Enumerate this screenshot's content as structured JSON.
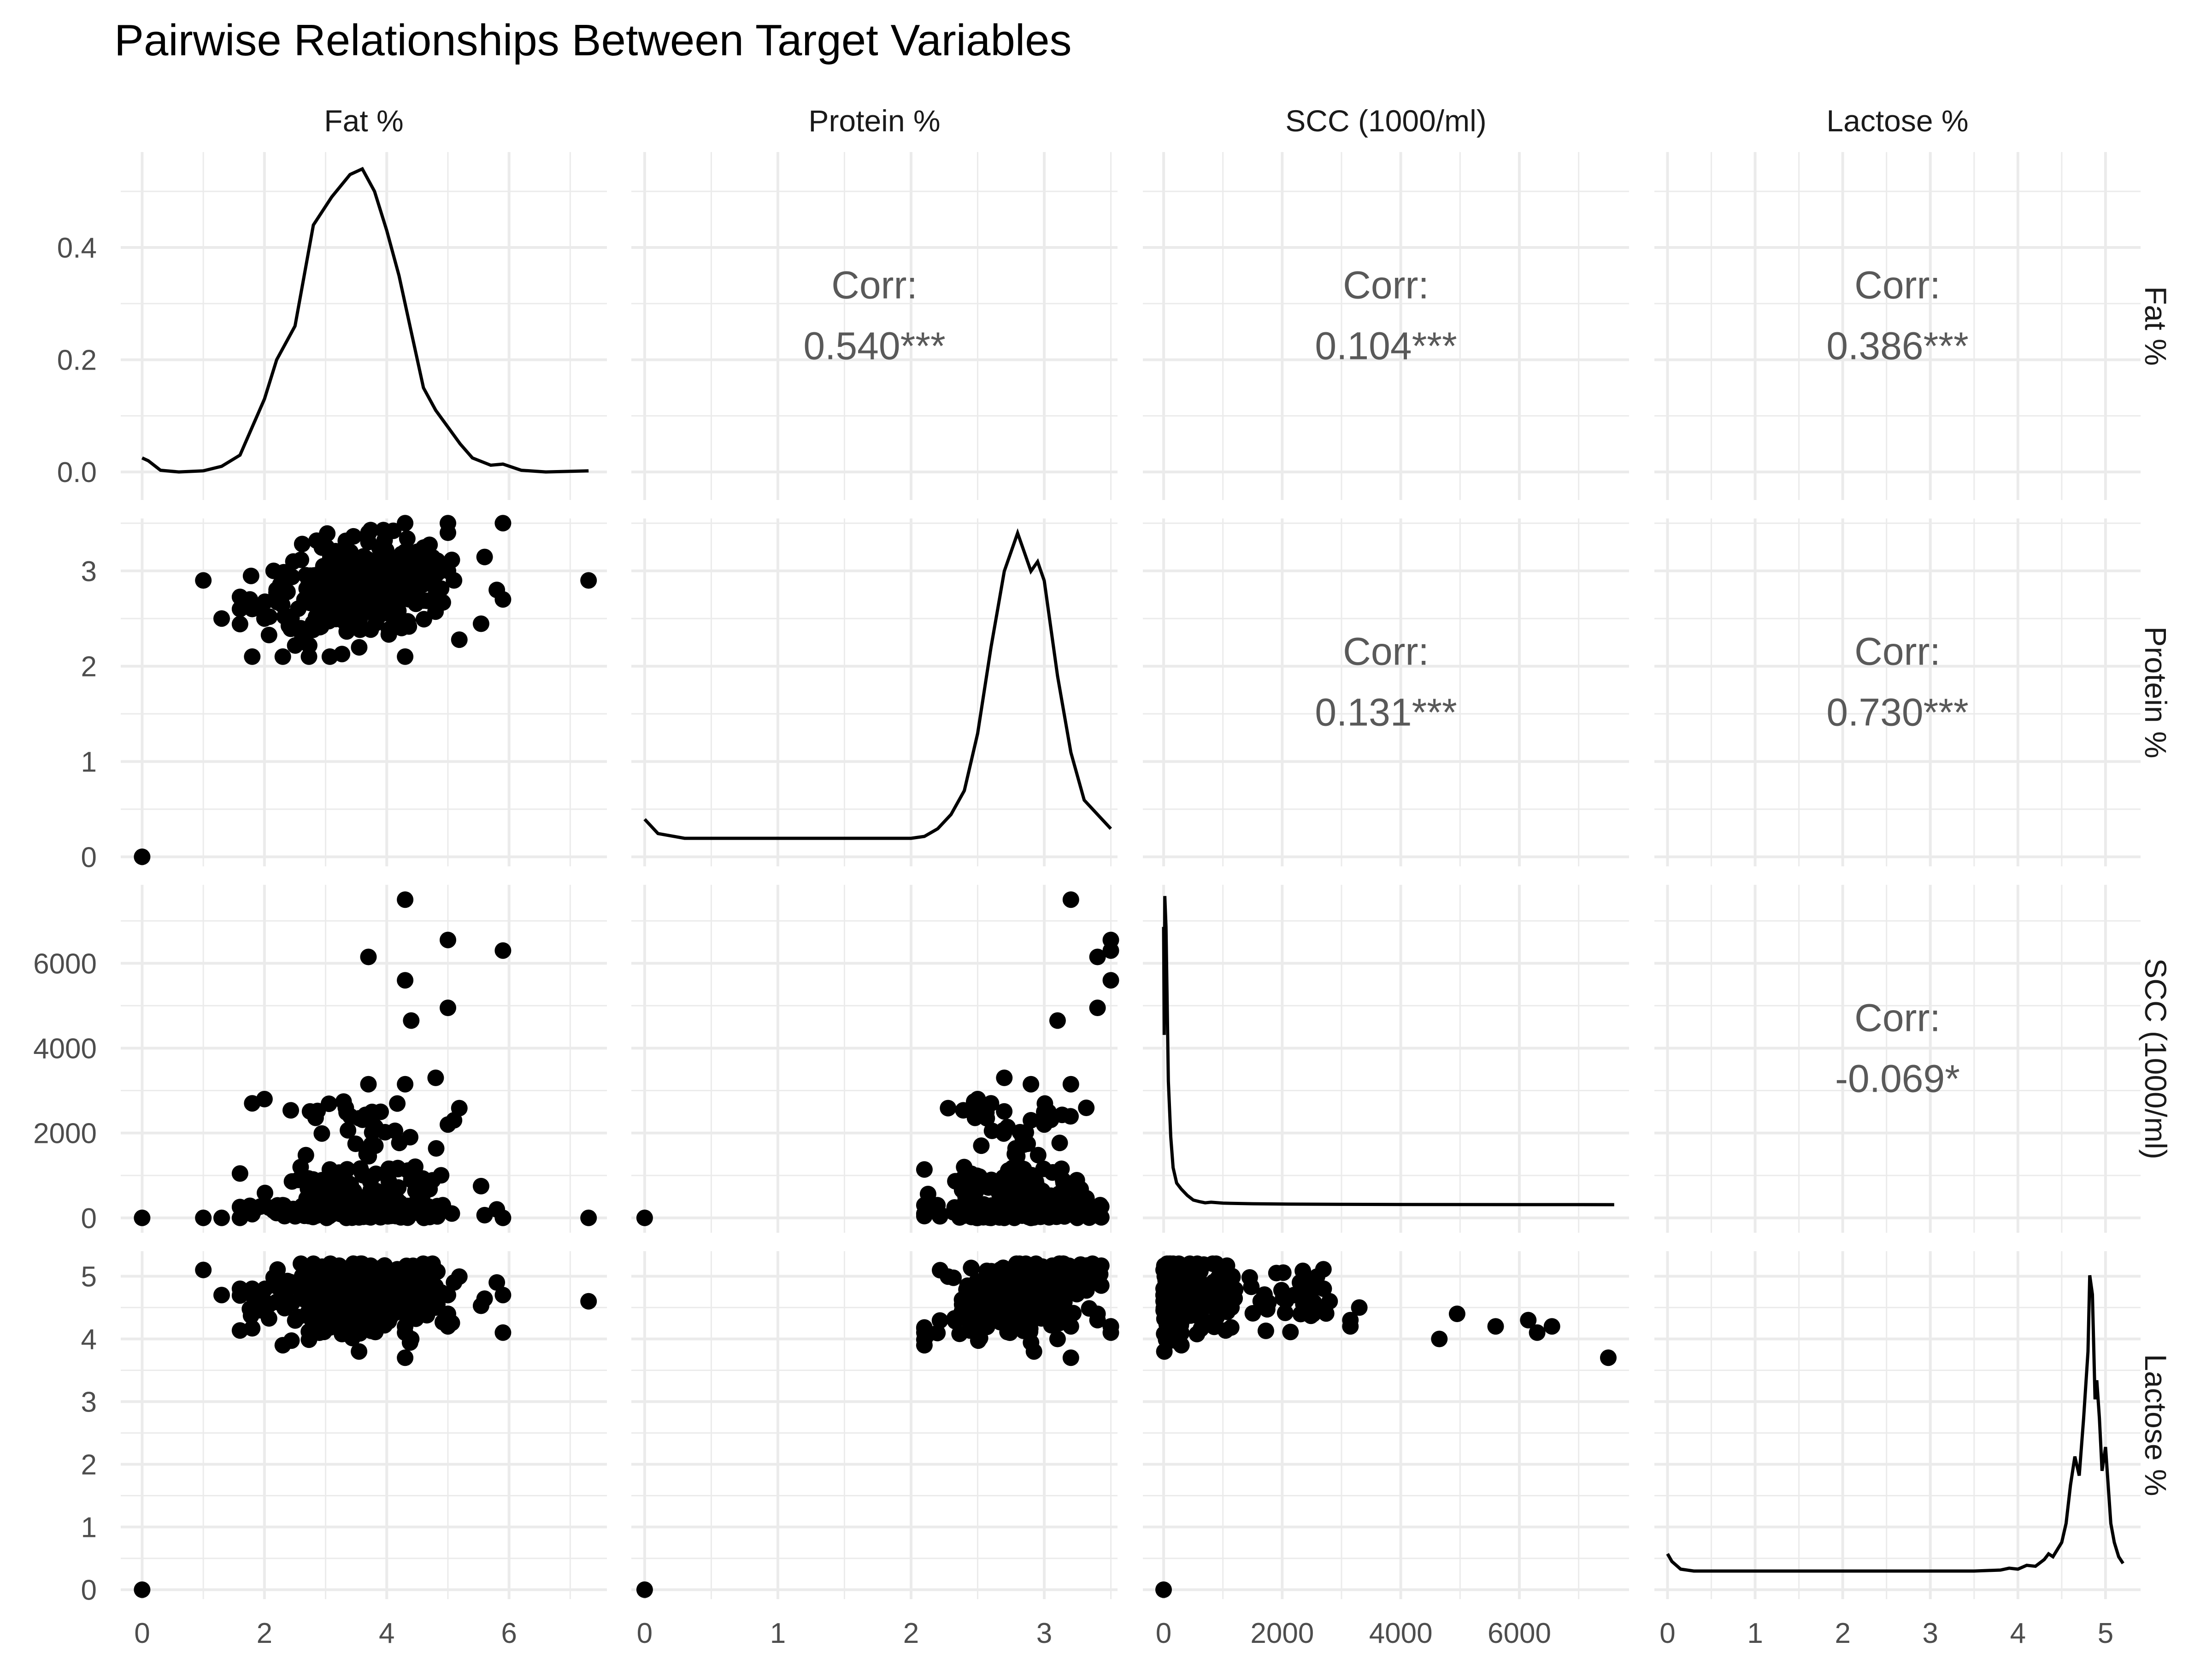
{
  "title": "Pairwise Relationships Between Target Variables",
  "chart_data": {
    "type": "scatter-matrix",
    "variables": [
      "Fat %",
      "Protein %",
      "SCC (1000/ml)",
      "Lactose %"
    ],
    "axes": [
      {
        "name": "Fat %",
        "range": [
          -0.35,
          7.6
        ],
        "ticks": [
          0,
          2,
          4,
          6
        ],
        "minor": [
          1,
          3,
          5,
          7
        ]
      },
      {
        "name": "Protein %",
        "range": [
          -0.1,
          3.55
        ],
        "ticks": [
          0,
          1,
          2,
          3
        ],
        "minor": [
          0.5,
          1.5,
          2.5,
          3.5
        ]
      },
      {
        "name": "SCC (1000/ml)",
        "range": [
          -350,
          7850
        ],
        "ticks": [
          0,
          2000,
          4000,
          6000
        ],
        "minor": [
          1000,
          3000,
          5000,
          7000
        ]
      },
      {
        "name": "Lactose %",
        "range": [
          -0.15,
          5.4
        ],
        "ticks": [
          0,
          1,
          2,
          3,
          4,
          5
        ],
        "minor": [
          0.5,
          1.5,
          2.5,
          3.5,
          4.5
        ]
      }
    ],
    "density_y_range": [
      -0.05,
      0.57
    ],
    "density_ticks": [
      "0.0",
      "0.2",
      "0.4"
    ],
    "density_tick_values": [
      0,
      0.2,
      0.4
    ],
    "density_minor": [
      0.1,
      0.3,
      0.5
    ],
    "correlations": [
      {
        "row": 0,
        "col": 1,
        "label": "Corr:",
        "value": "0.540***"
      },
      {
        "row": 0,
        "col": 2,
        "label": "Corr:",
        "value": "0.104***"
      },
      {
        "row": 0,
        "col": 3,
        "label": "Corr:",
        "value": "0.386***"
      },
      {
        "row": 1,
        "col": 2,
        "label": "Corr:",
        "value": "0.131***"
      },
      {
        "row": 1,
        "col": 3,
        "label": "Corr:",
        "value": "0.730***"
      },
      {
        "row": 2,
        "col": 3,
        "label": "Corr:",
        "value": "-0.069*"
      }
    ],
    "densities": [
      [
        [
          0,
          0.025
        ],
        [
          0.1,
          0.02
        ],
        [
          0.3,
          0.003
        ],
        [
          0.6,
          0
        ],
        [
          1.0,
          0.002
        ],
        [
          1.3,
          0.01
        ],
        [
          1.6,
          0.03
        ],
        [
          1.8,
          0.08
        ],
        [
          2.0,
          0.13
        ],
        [
          2.2,
          0.2
        ],
        [
          2.5,
          0.26
        ],
        [
          2.8,
          0.44
        ],
        [
          3.1,
          0.49
        ],
        [
          3.4,
          0.53
        ],
        [
          3.6,
          0.54
        ],
        [
          3.8,
          0.5
        ],
        [
          4.0,
          0.43
        ],
        [
          4.2,
          0.35
        ],
        [
          4.4,
          0.25
        ],
        [
          4.6,
          0.15
        ],
        [
          4.8,
          0.11
        ],
        [
          5.0,
          0.08
        ],
        [
          5.2,
          0.05
        ],
        [
          5.4,
          0.025
        ],
        [
          5.7,
          0.012
        ],
        [
          5.9,
          0.014
        ],
        [
          6.2,
          0.003
        ],
        [
          6.6,
          0
        ],
        [
          7.3,
          0.002
        ]
      ],
      [
        [
          0,
          0.02
        ],
        [
          0.1,
          0.005
        ],
        [
          0.3,
          0
        ],
        [
          1.5,
          0
        ],
        [
          2.0,
          0
        ],
        [
          2.1,
          0.002
        ],
        [
          2.2,
          0.01
        ],
        [
          2.3,
          0.025
        ],
        [
          2.4,
          0.05
        ],
        [
          2.5,
          0.11
        ],
        [
          2.6,
          0.2
        ],
        [
          2.65,
          0.24
        ],
        [
          2.7,
          0.28
        ],
        [
          2.8,
          0.32
        ],
        [
          2.85,
          0.3
        ],
        [
          2.9,
          0.28
        ],
        [
          2.95,
          0.29
        ],
        [
          3.0,
          0.27
        ],
        [
          3.1,
          0.17
        ],
        [
          3.2,
          0.09
        ],
        [
          3.3,
          0.04
        ],
        [
          3.4,
          0.025
        ],
        [
          3.5,
          0.01
        ]
      ],
      [
        [
          0,
          0.9
        ],
        [
          10,
          0.55
        ],
        [
          20,
          1.0
        ],
        [
          40,
          0.9
        ],
        [
          60,
          0.65
        ],
        [
          80,
          0.4
        ],
        [
          120,
          0.22
        ],
        [
          160,
          0.12
        ],
        [
          220,
          0.07
        ],
        [
          300,
          0.05
        ],
        [
          400,
          0.03
        ],
        [
          500,
          0.015
        ],
        [
          600,
          0.01
        ],
        [
          700,
          0.006
        ],
        [
          800,
          0.008
        ],
        [
          1000,
          0.005
        ],
        [
          1500,
          0.003
        ],
        [
          2000,
          0.002
        ],
        [
          3000,
          0.001
        ],
        [
          4000,
          0.0005
        ],
        [
          7600,
          0
        ]
      ],
      [
        [
          0,
          0.18
        ],
        [
          0.05,
          0.1
        ],
        [
          0.15,
          0.02
        ],
        [
          0.3,
          0
        ],
        [
          3.5,
          0
        ],
        [
          3.8,
          0.01
        ],
        [
          3.9,
          0.03
        ],
        [
          4.0,
          0.02
        ],
        [
          4.1,
          0.06
        ],
        [
          4.2,
          0.05
        ],
        [
          4.3,
          0.12
        ],
        [
          4.35,
          0.18
        ],
        [
          4.4,
          0.15
        ],
        [
          4.5,
          0.3
        ],
        [
          4.55,
          0.5
        ],
        [
          4.6,
          0.9
        ],
        [
          4.65,
          1.2
        ],
        [
          4.7,
          1.0
        ],
        [
          4.75,
          1.6
        ],
        [
          4.8,
          2.3
        ],
        [
          4.82,
          3.1
        ],
        [
          4.85,
          2.9
        ],
        [
          4.88,
          1.8
        ],
        [
          4.9,
          2.0
        ],
        [
          4.93,
          1.6
        ],
        [
          4.96,
          1.05
        ],
        [
          5.0,
          1.3
        ],
        [
          5.03,
          0.9
        ],
        [
          5.06,
          0.5
        ],
        [
          5.1,
          0.3
        ],
        [
          5.15,
          0.15
        ],
        [
          5.2,
          0.08
        ]
      ]
    ],
    "density_scales": [
      1,
      1,
      0.55,
      0.17
    ]
  }
}
